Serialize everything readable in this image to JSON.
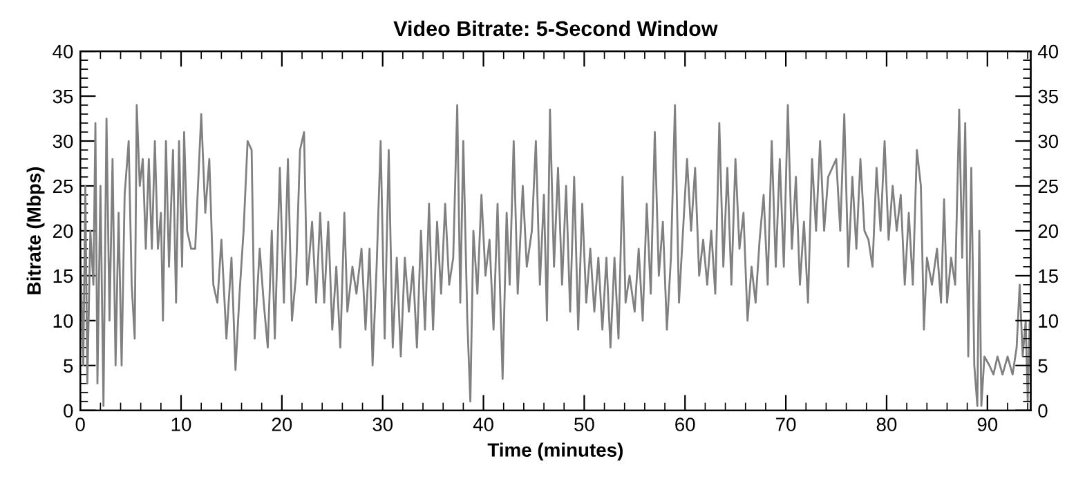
{
  "chart_data": {
    "type": "line",
    "title": "Video Bitrate: 5-Second Window",
    "xlabel": "Time (minutes)",
    "ylabel": "Bitrate (Mbps)",
    "xlim": [
      0,
      94.3
    ],
    "xticks": [
      0,
      10,
      20,
      30,
      40,
      50,
      60,
      70,
      80,
      90
    ],
    "ylim": [
      0,
      40
    ],
    "yticks": [
      0,
      5,
      10,
      15,
      20,
      25,
      30,
      35,
      40
    ],
    "y2lim": [
      0,
      40
    ],
    "y2ticks": [
      0,
      5,
      10,
      15,
      20,
      25,
      30,
      35,
      40
    ],
    "marker": "none",
    "line_style": "solid",
    "series": [
      {
        "color": "#808080",
        "x": [
          0,
          0.3,
          0.5,
          0.7,
          1.0,
          1.3,
          1.5,
          1.7,
          2.0,
          2.3,
          2.6,
          2.9,
          3.2,
          3.5,
          3.8,
          4.1,
          4.4,
          4.8,
          5.1,
          5.4,
          5.6,
          5.9,
          6.2,
          6.5,
          6.8,
          7.1,
          7.4,
          7.7,
          8.0,
          8.2,
          8.5,
          8.8,
          9.2,
          9.5,
          9.8,
          10.1,
          10.3,
          10.6,
          11.0,
          11.4,
          12.0,
          12.4,
          12.8,
          13.2,
          13.6,
          14.0,
          14.5,
          15.0,
          15.4,
          15.8,
          16.2,
          16.6,
          17.0,
          17.3,
          17.8,
          18.2,
          18.6,
          19.0,
          19.3,
          19.8,
          20.2,
          20.6,
          21.0,
          21.4,
          21.8,
          22.2,
          22.5,
          23.0,
          23.4,
          23.8,
          24.2,
          24.6,
          25.0,
          25.4,
          25.8,
          26.2,
          26.5,
          27.0,
          27.4,
          27.9,
          28.3,
          28.7,
          29.0,
          29.4,
          29.8,
          30.2,
          30.6,
          31.0,
          31.4,
          31.8,
          32.2,
          32.6,
          33.0,
          33.4,
          33.8,
          34.2,
          34.6,
          35.0,
          35.4,
          35.8,
          36.2,
          36.6,
          37.0,
          37.4,
          37.7,
          38.0,
          38.4,
          38.7,
          39.0,
          39.4,
          39.8,
          40.2,
          40.6,
          41.0,
          41.4,
          41.9,
          42.3,
          42.6,
          43.0,
          43.4,
          43.9,
          44.3,
          44.8,
          45.2,
          45.6,
          46.0,
          46.3,
          46.6,
          47.0,
          47.4,
          47.8,
          48.2,
          48.6,
          49.0,
          49.4,
          49.8,
          50.2,
          50.6,
          51.0,
          51.4,
          51.8,
          52.2,
          52.6,
          53.0,
          53.4,
          53.8,
          54.1,
          54.5,
          55.0,
          55.4,
          55.8,
          56.2,
          56.6,
          57.0,
          57.4,
          57.8,
          58.2,
          58.6,
          59.0,
          59.4,
          59.8,
          60.2,
          60.6,
          61.0,
          61.4,
          61.8,
          62.2,
          62.6,
          63.0,
          63.4,
          63.8,
          64.2,
          64.6,
          65.0,
          65.4,
          65.8,
          66.2,
          66.6,
          67.0,
          67.4,
          67.8,
          68.2,
          68.6,
          69.0,
          69.4,
          69.8,
          70.2,
          70.6,
          71.0,
          71.4,
          71.8,
          72.2,
          72.6,
          73.0,
          73.4,
          73.8,
          74.2,
          74.6,
          75.0,
          75.4,
          75.8,
          76.2,
          76.6,
          77.0,
          77.4,
          77.8,
          78.2,
          78.6,
          79.0,
          79.4,
          79.8,
          80.2,
          80.6,
          81.0,
          81.4,
          81.8,
          82.2,
          82.6,
          83.0,
          83.4,
          83.7,
          84.0,
          84.5,
          85.0,
          85.4,
          85.7,
          86.0,
          86.4,
          86.8,
          87.2,
          87.5,
          87.8,
          88.1,
          88.4,
          88.7,
          89.0,
          89.2,
          89.4,
          89.7,
          90.2,
          90.6,
          91.0,
          91.5,
          92.0,
          92.5,
          92.9,
          93.2,
          93.5,
          93.8,
          94.0,
          94.2
        ],
        "values": [
          18,
          5,
          25,
          3,
          20,
          14,
          32,
          3,
          25,
          0.5,
          32.5,
          10,
          28,
          5,
          22,
          5,
          24,
          30,
          14,
          8,
          34,
          25,
          28,
          18,
          28,
          18,
          30,
          18,
          22,
          10,
          30,
          16,
          29,
          12,
          30,
          16,
          31,
          20,
          18,
          18,
          33,
          22,
          28,
          14,
          12,
          19,
          8,
          17,
          4.5,
          13,
          20,
          30,
          29,
          8,
          18,
          12,
          7,
          20,
          8,
          27,
          12,
          28,
          10,
          15,
          29,
          31,
          14,
          21,
          12,
          22,
          12,
          21,
          9,
          16,
          7,
          22,
          11,
          16,
          13,
          18,
          9,
          18,
          5,
          16,
          30,
          8,
          29,
          7,
          17,
          6,
          17,
          11,
          16,
          7,
          20,
          9,
          23,
          9,
          21,
          13,
          23,
          14,
          17,
          34,
          12,
          30,
          10,
          1,
          20,
          13,
          24,
          15,
          19,
          9,
          23,
          3.5,
          22,
          14,
          30,
          13,
          25,
          16,
          20,
          30,
          14,
          24,
          10,
          33.5,
          16,
          27,
          14,
          25,
          11,
          26,
          9,
          23,
          12,
          18,
          11,
          17,
          9,
          17,
          7,
          17,
          8,
          26,
          12,
          15,
          11,
          18,
          10,
          23,
          13,
          31,
          15,
          21,
          9,
          17,
          34,
          12,
          20,
          28,
          20,
          27,
          15,
          19,
          14,
          20,
          13,
          32,
          16,
          27,
          14,
          28,
          18,
          22,
          10,
          16,
          12,
          19,
          24,
          14,
          30,
          16,
          28,
          16,
          34,
          18,
          26,
          14,
          21,
          12,
          28,
          20,
          30,
          20,
          26,
          27,
          28,
          20,
          33,
          16,
          26,
          18,
          28,
          20,
          19,
          16,
          27,
          20,
          30,
          19,
          25,
          20,
          24,
          14,
          22,
          14,
          29,
          25,
          9,
          17,
          14,
          18,
          12,
          23.5,
          12,
          17,
          14,
          33.5,
          17,
          32,
          6,
          27,
          5,
          0.5,
          20,
          0.5,
          6,
          5,
          4,
          6,
          4,
          6,
          4,
          7,
          14,
          6,
          10,
          1,
          10
        ]
      }
    ]
  }
}
